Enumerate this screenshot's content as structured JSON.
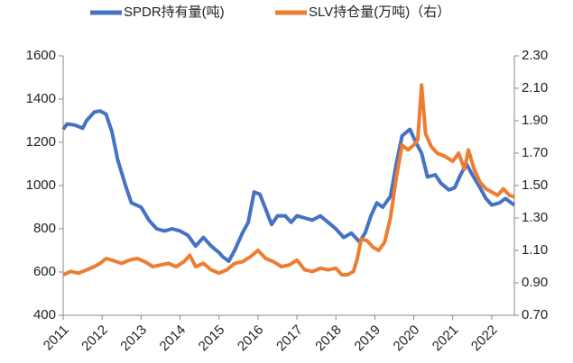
{
  "chart_data": {
    "type": "line",
    "xlim": [
      2011,
      2022.58
    ],
    "xticks": [
      2011,
      2012,
      2013,
      2014,
      2015,
      2016,
      2017,
      2018,
      2019,
      2020,
      2021,
      2022
    ],
    "ylim": [
      400,
      1600
    ],
    "yticks": [
      400,
      600,
      800,
      1000,
      1200,
      1400,
      1600
    ],
    "y2lim": [
      0.7,
      2.3
    ],
    "y2ticks": [
      {
        "value": 0.7,
        "label": "0.70"
      },
      {
        "value": 0.9,
        "label": "0.90"
      },
      {
        "value": 1.1,
        "label": "1.10"
      },
      {
        "value": 1.3,
        "label": "1.30"
      },
      {
        "value": 1.5,
        "label": "1.50"
      },
      {
        "value": 1.7,
        "label": "1.70"
      },
      {
        "value": 1.9,
        "label": "1.90"
      },
      {
        "value": 2.1,
        "label": "2.10"
      },
      {
        "value": 2.3,
        "label": "2.30"
      }
    ],
    "series": [
      {
        "name": "SPDR持有量(吨)",
        "color": "#4472c4",
        "x": [
          2011.0,
          2011.1,
          2011.3,
          2011.5,
          2011.6,
          2011.8,
          2011.95,
          2012.1,
          2012.25,
          2012.4,
          2012.6,
          2012.75,
          2013.0,
          2013.2,
          2013.4,
          2013.6,
          2013.8,
          2014.0,
          2014.2,
          2014.4,
          2014.6,
          2014.8,
          2015.0,
          2015.1,
          2015.25,
          2015.4,
          2015.6,
          2015.75,
          2015.9,
          2016.05,
          2016.2,
          2016.35,
          2016.5,
          2016.7,
          2016.85,
          2017.0,
          2017.2,
          2017.4,
          2017.6,
          2017.8,
          2018.0,
          2018.2,
          2018.4,
          2018.6,
          2018.75,
          2018.9,
          2019.05,
          2019.2,
          2019.4,
          2019.55,
          2019.7,
          2019.9,
          2020.05,
          2020.2,
          2020.35,
          2020.55,
          2020.7,
          2020.9,
          2021.05,
          2021.2,
          2021.35,
          2021.5,
          2021.7,
          2021.85,
          2022.0,
          2022.2,
          2022.35,
          2022.58
        ],
        "values": [
          1260,
          1285,
          1280,
          1265,
          1300,
          1340,
          1345,
          1330,
          1250,
          1120,
          1000,
          920,
          900,
          840,
          800,
          790,
          800,
          790,
          770,
          720,
          760,
          720,
          690,
          670,
          650,
          700,
          780,
          830,
          970,
          960,
          890,
          820,
          860,
          860,
          830,
          860,
          850,
          840,
          860,
          830,
          800,
          760,
          780,
          740,
          780,
          860,
          920,
          900,
          950,
          1100,
          1230,
          1260,
          1200,
          1150,
          1040,
          1050,
          1010,
          980,
          990,
          1050,
          1100,
          1050,
          990,
          940,
          910,
          920,
          940,
          910
        ]
      },
      {
        "name": "SLV持仓量(万吨)（右）",
        "color": "#ed7d31",
        "axis": "y2",
        "x": [
          2011.0,
          2011.2,
          2011.4,
          2011.6,
          2011.8,
          2011.95,
          2012.1,
          2012.25,
          2012.5,
          2012.7,
          2012.9,
          2013.1,
          2013.3,
          2013.5,
          2013.7,
          2013.9,
          2014.1,
          2014.25,
          2014.4,
          2014.6,
          2014.8,
          2015.0,
          2015.2,
          2015.4,
          2015.6,
          2015.8,
          2016.0,
          2016.2,
          2016.4,
          2016.6,
          2016.8,
          2017.0,
          2017.2,
          2017.4,
          2017.6,
          2017.8,
          2018.0,
          2018.15,
          2018.3,
          2018.45,
          2018.55,
          2018.65,
          2018.8,
          2018.95,
          2019.1,
          2019.25,
          2019.4,
          2019.55,
          2019.7,
          2019.85,
          2020.0,
          2020.1,
          2020.2,
          2020.3,
          2020.45,
          2020.6,
          2020.8,
          2021.0,
          2021.15,
          2021.3,
          2021.4,
          2021.55,
          2021.7,
          2021.85,
          2022.0,
          2022.15,
          2022.3,
          2022.45,
          2022.58
        ],
        "values": [
          0.95,
          0.97,
          0.96,
          0.98,
          1.0,
          1.02,
          1.05,
          1.04,
          1.02,
          1.04,
          1.05,
          1.03,
          1.0,
          1.01,
          1.02,
          1.0,
          1.03,
          1.07,
          1.0,
          1.02,
          0.98,
          0.96,
          0.98,
          1.02,
          1.03,
          1.06,
          1.1,
          1.05,
          1.03,
          1.0,
          1.01,
          1.04,
          0.98,
          0.97,
          0.99,
          0.98,
          0.99,
          0.95,
          0.95,
          0.97,
          1.05,
          1.17,
          1.16,
          1.12,
          1.1,
          1.15,
          1.3,
          1.55,
          1.75,
          1.72,
          1.75,
          1.78,
          2.12,
          1.82,
          1.74,
          1.7,
          1.68,
          1.65,
          1.7,
          1.6,
          1.72,
          1.6,
          1.52,
          1.48,
          1.46,
          1.44,
          1.48,
          1.44,
          1.43
        ]
      }
    ],
    "legend": "top"
  }
}
